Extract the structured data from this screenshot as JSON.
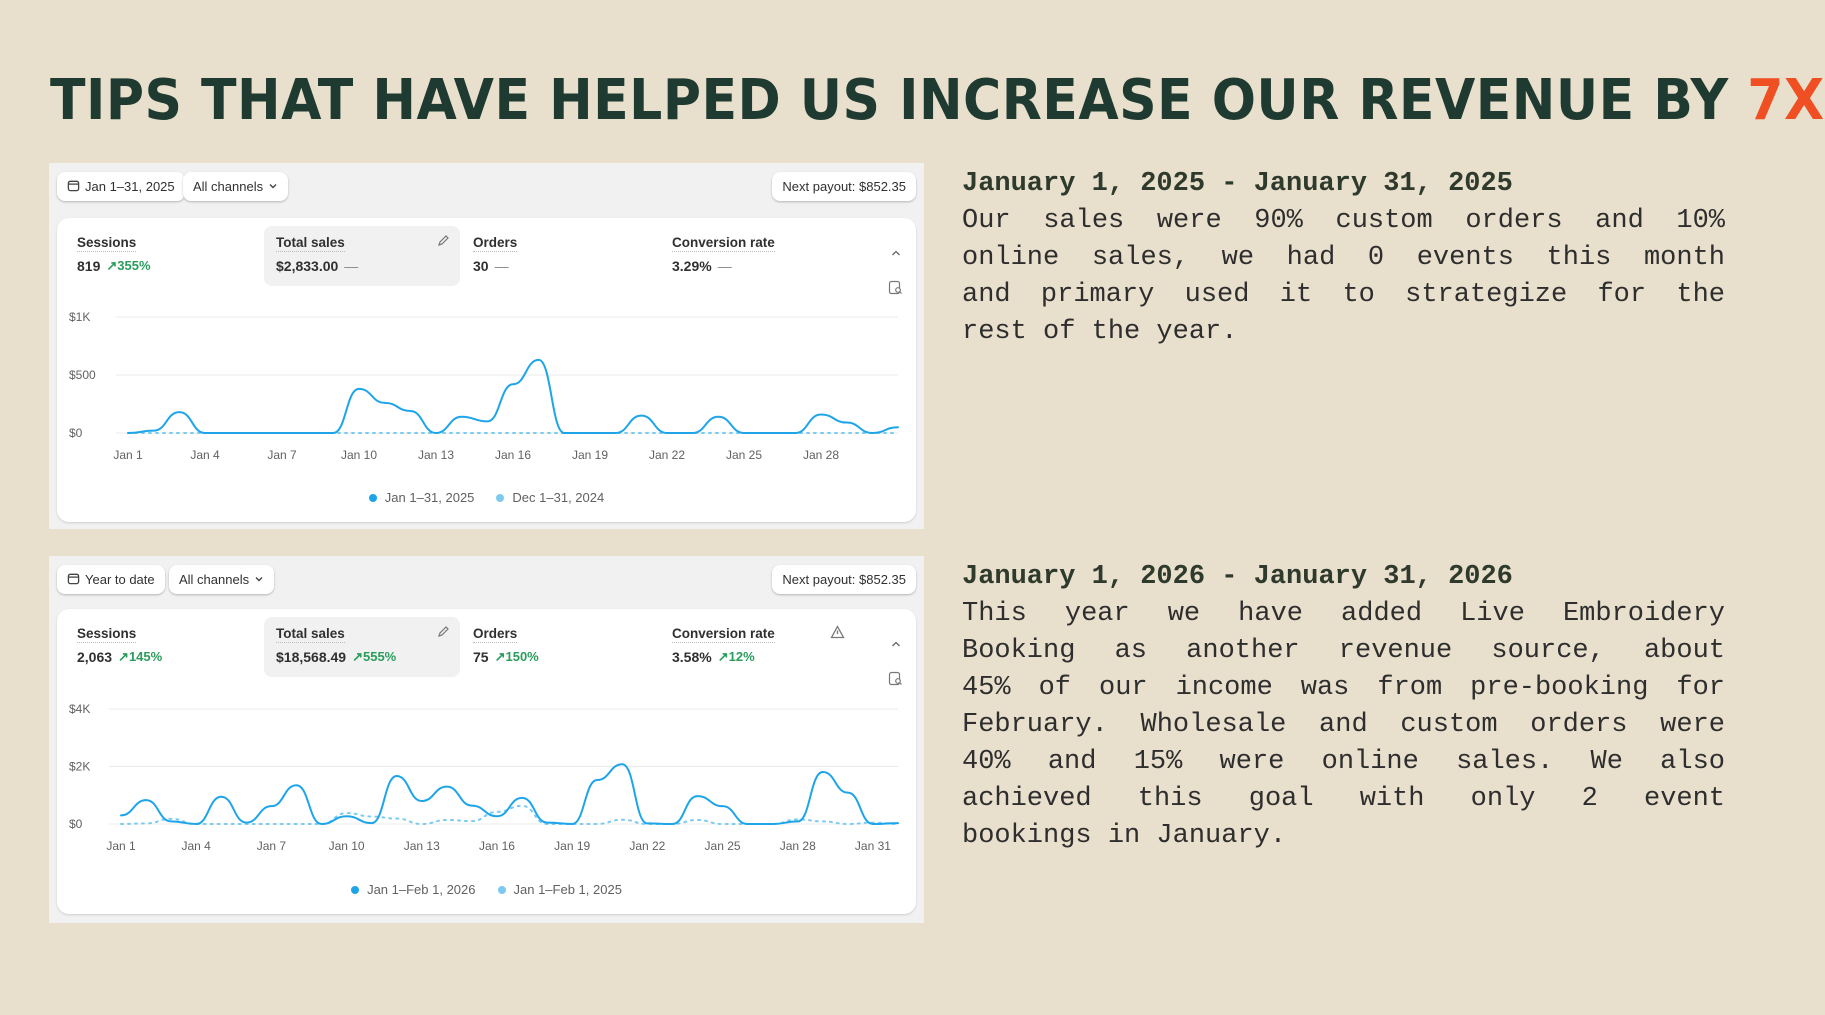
{
  "title": {
    "main": "TIPS THAT HAVE HELPED US INCREASE OUR REVENUE BY ",
    "accent": "7X",
    "accent_color": "#f04e23"
  },
  "panels": [
    {
      "date_button": "Jan 1–31, 2025",
      "channels_button": "All channels",
      "payout": "Next payout: $852.35",
      "metrics": [
        {
          "label": "Sessions",
          "value": "819",
          "delta": "355%"
        },
        {
          "label": "Total sales",
          "value": "$2,833.00",
          "delta": "—"
        },
        {
          "label": "Orders",
          "value": "30",
          "delta": "—"
        },
        {
          "label": "Conversion rate",
          "value": "3.29%",
          "delta": "—"
        }
      ]
    },
    {
      "date_button": "Year to date",
      "channels_button": "All channels",
      "payout": "Next payout: $852.35",
      "metrics": [
        {
          "label": "Sessions",
          "value": "2,063",
          "delta": "145%"
        },
        {
          "label": "Total sales",
          "value": "$18,568.49",
          "delta": "555%"
        },
        {
          "label": "Orders",
          "value": "75",
          "delta": "150%"
        },
        {
          "label": "Conversion rate",
          "value": "3.58%",
          "delta": "12%"
        }
      ]
    }
  ],
  "chart_data": [
    {
      "type": "line",
      "ylim": [
        0,
        1000
      ],
      "yticks": [
        {
          "v": 0,
          "label": "$0"
        },
        {
          "v": 500,
          "label": "$500"
        },
        {
          "v": 1000,
          "label": "$1K"
        }
      ],
      "xticks": [
        {
          "i": 0,
          "label": "Jan 1"
        },
        {
          "i": 3,
          "label": "Jan 4"
        },
        {
          "i": 6,
          "label": "Jan 7"
        },
        {
          "i": 9,
          "label": "Jan 10"
        },
        {
          "i": 12,
          "label": "Jan 13"
        },
        {
          "i": 15,
          "label": "Jan 16"
        },
        {
          "i": 18,
          "label": "Jan 19"
        },
        {
          "i": 21,
          "label": "Jan 22"
        },
        {
          "i": 24,
          "label": "Jan 25"
        },
        {
          "i": 27,
          "label": "Jan 28"
        }
      ],
      "series": [
        {
          "name": "Jan 1–31, 2025",
          "color": "#1ea5e9",
          "values": [
            0,
            20,
            180,
            0,
            0,
            0,
            0,
            0,
            0,
            380,
            260,
            190,
            0,
            140,
            100,
            420,
            630,
            0,
            0,
            0,
            150,
            0,
            0,
            140,
            0,
            0,
            0,
            160,
            90,
            0,
            50
          ]
        },
        {
          "name": "Dec 1–31, 2024",
          "color": "#7ccbee",
          "values": [
            0,
            0,
            0,
            0,
            0,
            0,
            0,
            0,
            0,
            0,
            0,
            0,
            0,
            0,
            0,
            0,
            0,
            0,
            0,
            0,
            0,
            0,
            0,
            0,
            0,
            0,
            0,
            0,
            0,
            0,
            0
          ]
        }
      ],
      "legend": "bottom"
    },
    {
      "type": "line",
      "ylim": [
        0,
        4000
      ],
      "yticks": [
        {
          "v": 0,
          "label": "$0"
        },
        {
          "v": 2000,
          "label": "$2K"
        },
        {
          "v": 4000,
          "label": "$4K"
        }
      ],
      "xticks": [
        {
          "i": 0,
          "label": "Jan 1"
        },
        {
          "i": 3,
          "label": "Jan 4"
        },
        {
          "i": 6,
          "label": "Jan 7"
        },
        {
          "i": 9,
          "label": "Jan 10"
        },
        {
          "i": 12,
          "label": "Jan 13"
        },
        {
          "i": 15,
          "label": "Jan 16"
        },
        {
          "i": 18,
          "label": "Jan 19"
        },
        {
          "i": 21,
          "label": "Jan 22"
        },
        {
          "i": 24,
          "label": "Jan 25"
        },
        {
          "i": 27,
          "label": "Jan 28"
        },
        {
          "i": 30,
          "label": "Jan 31"
        }
      ],
      "series": [
        {
          "name": "Jan 1–Feb 1, 2026",
          "color": "#1ea5e9",
          "values": [
            300,
            830,
            90,
            0,
            950,
            50,
            620,
            1350,
            0,
            270,
            30,
            1670,
            800,
            1300,
            640,
            270,
            910,
            50,
            0,
            1530,
            2080,
            20,
            0,
            970,
            620,
            0,
            0,
            90,
            1810,
            1090,
            0,
            30
          ]
        },
        {
          "name": "Jan 1–Feb 1, 2025",
          "color": "#7ccbee",
          "values": [
            0,
            20,
            180,
            0,
            0,
            0,
            0,
            0,
            0,
            380,
            260,
            190,
            0,
            140,
            100,
            420,
            630,
            0,
            0,
            0,
            150,
            0,
            0,
            140,
            0,
            0,
            0,
            160,
            90,
            0,
            50,
            0
          ]
        }
      ],
      "legend": "bottom"
    }
  ],
  "notes": [
    {
      "heading": "January 1, 2025 - January 31, 2025",
      "lines": [
        "Our sales were 90% custom orders and 10%",
        "online sales, we had 0 events this month",
        "and primary used it to strategize for the",
        "rest of the year."
      ]
    },
    {
      "heading": "January 1, 2026 - January 31, 2026",
      "lines": [
        "This year we have added Live Embroidery",
        "Booking as another revenue source, about",
        "45% of our income was from pre-booking for",
        "February. Wholesale and custom orders were",
        "40% and 15% were online sales. We also",
        "achieved this goal with only 2 event",
        "bookings in January."
      ]
    }
  ]
}
